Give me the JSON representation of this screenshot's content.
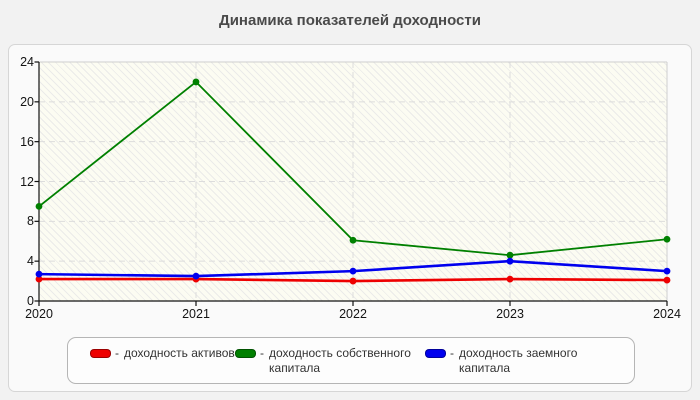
{
  "title": "Динамика показателей доходности",
  "chart_data": {
    "type": "line",
    "x": [
      "2020",
      "2021",
      "2022",
      "2023",
      "2024"
    ],
    "series": [
      {
        "name": "доходность активов",
        "color": "#ee0000",
        "line_width": 2.6,
        "values": [
          2.2,
          2.2,
          2.0,
          2.2,
          2.1
        ]
      },
      {
        "name": "доходность собственного капитала",
        "color": "#008000",
        "line_width": 1.8,
        "values": [
          9.5,
          22.0,
          6.1,
          4.6,
          6.2
        ]
      },
      {
        "name": "доходность заемного капитала",
        "color": "#0000ee",
        "line_width": 2.6,
        "values": [
          2.7,
          2.5,
          3.0,
          4.0,
          3.0
        ]
      }
    ],
    "ylim": [
      0,
      24
    ],
    "ytick_step": 4,
    "yticks": [
      0,
      4,
      8,
      12,
      16,
      20,
      24
    ],
    "grid": true,
    "legend_position": "bottom",
    "legend_dash": "-",
    "marker": "circle",
    "colors": {
      "grid": "#dcdcdc",
      "axis": "#111111",
      "plot_border": "#cfcfcf"
    }
  }
}
